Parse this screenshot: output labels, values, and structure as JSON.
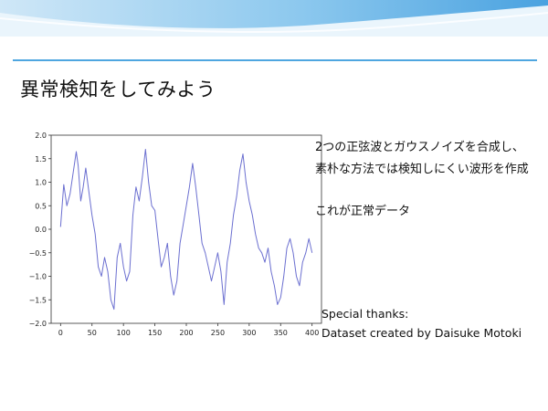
{
  "slide": {
    "title": "異常検知をしてみよう",
    "description": [
      "2つの正弦波とガウスノイズを合成し、",
      "素朴な方法では検知しにくい波形を作成",
      "これが正常データ"
    ],
    "thanks_heading": "Special thanks:",
    "thanks_credit": "Dataset created by Daisuke Motoki"
  },
  "colors": {
    "accent": "#4fa6e0",
    "line": "#6b6fd0"
  },
  "chart_data": {
    "type": "line",
    "title": "",
    "xlabel": "",
    "ylabel": "",
    "xlim": [
      -15,
      415
    ],
    "ylim": [
      -2.0,
      2.0
    ],
    "xticks": [
      0,
      50,
      100,
      150,
      200,
      250,
      300,
      350,
      400
    ],
    "yticks": [
      2.0,
      1.5,
      1.0,
      0.5,
      0.0,
      -0.5,
      -1.0,
      -1.5,
      -2.0
    ],
    "ytick_labels": [
      "2.0",
      "1.5",
      "1.0",
      "0.5",
      "0.0",
      "−0.5",
      "−1.0",
      "−1.5",
      "−2.0"
    ],
    "grid": false,
    "series": [
      {
        "x": [
          0,
          5,
          10,
          15,
          20,
          25,
          28,
          32,
          36,
          40,
          45,
          50,
          55,
          60,
          65,
          70,
          75,
          80,
          85,
          90,
          95,
          100,
          105,
          110,
          115,
          120,
          125,
          130,
          135,
          140,
          145,
          150,
          155,
          160,
          165,
          170,
          175,
          180,
          185,
          190,
          195,
          200,
          205,
          210,
          215,
          220,
          225,
          230,
          235,
          240,
          245,
          250,
          255,
          260,
          265,
          270,
          275,
          280,
          285,
          290,
          295,
          300,
          305,
          310,
          315,
          320,
          325,
          330,
          335,
          340,
          345,
          350,
          355,
          360,
          365,
          370,
          375,
          380,
          385,
          390,
          395,
          400
        ],
        "y": [
          0.05,
          0.95,
          0.5,
          0.75,
          1.2,
          1.65,
          1.35,
          0.6,
          0.9,
          1.3,
          0.8,
          0.3,
          -0.1,
          -0.8,
          -1.0,
          -0.6,
          -0.9,
          -1.5,
          -1.7,
          -0.6,
          -0.3,
          -0.8,
          -1.1,
          -0.9,
          0.3,
          0.9,
          0.6,
          1.1,
          1.7,
          1.0,
          0.5,
          0.4,
          -0.2,
          -0.8,
          -0.6,
          -0.3,
          -1.0,
          -1.4,
          -1.1,
          -0.3,
          0.1,
          0.5,
          0.9,
          1.4,
          0.9,
          0.3,
          -0.3,
          -0.5,
          -0.8,
          -1.1,
          -0.8,
          -0.5,
          -0.9,
          -1.6,
          -0.7,
          -0.3,
          0.3,
          0.7,
          1.25,
          1.6,
          1.0,
          0.6,
          0.3,
          -0.1,
          -0.4,
          -0.5,
          -0.7,
          -0.4,
          -0.9,
          -1.2,
          -1.6,
          -1.45,
          -1.0,
          -0.4,
          -0.2,
          -0.5,
          -1.0,
          -1.2,
          -0.7,
          -0.5,
          -0.2,
          -0.5
        ]
      }
    ]
  }
}
